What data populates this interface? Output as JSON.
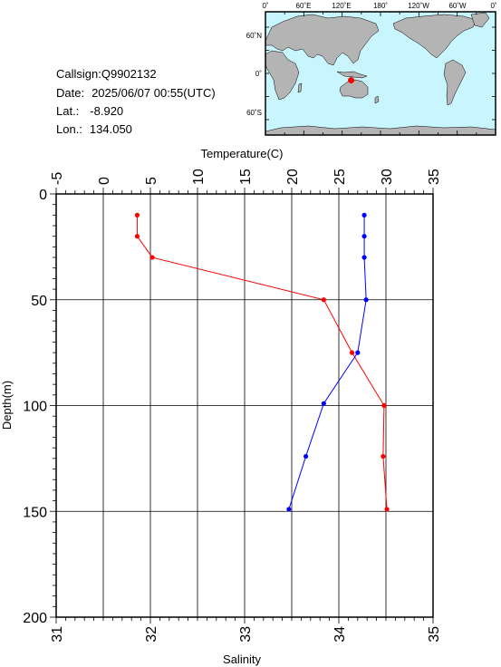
{
  "header": {
    "callsign_line": "Callsign:Q9902132",
    "date_label": "Date:",
    "date_value": "2025/06/07 00:55(UTC)",
    "lat_label": "Lat.:",
    "lat_value": "-8.920",
    "lon_label": "Lon.:",
    "lon_value": "134.050"
  },
  "map": {
    "top_labels": [
      "0˚",
      "60˚E",
      "120˚E",
      "180˚",
      "120˚W",
      "60˚W",
      "0˚"
    ],
    "left_labels": [
      "60˚N",
      "0˚",
      "60˚S"
    ],
    "ocean_color": "#c9f5ff",
    "land_color": "#b4b4b4",
    "marker_color": "#ff0000",
    "marker_lat": -8.92,
    "marker_lon": 134.05
  },
  "chart_data": {
    "type": "line",
    "title": "",
    "ylabel": "Depth(m)",
    "ylim": [
      0,
      200
    ],
    "y_inverted": true,
    "y_ticks": [
      0,
      50,
      100,
      150,
      200
    ],
    "top_axis": {
      "label": "Temperature(C)",
      "lim": [
        -5,
        35
      ],
      "ticks": [
        -5,
        0,
        5,
        10,
        15,
        20,
        25,
        30,
        35
      ]
    },
    "bottom_axis": {
      "label": "Salinity",
      "lim": [
        31,
        35
      ],
      "ticks": [
        31,
        32,
        33,
        34,
        35
      ]
    },
    "grid": true,
    "series": [
      {
        "axis": "top",
        "color": "#ff0000",
        "points": [
          {
            "depth": 10,
            "value": 3.6
          },
          {
            "depth": 20,
            "value": 3.6
          },
          {
            "depth": 30,
            "value": 5.2
          },
          {
            "depth": 50,
            "value": 23.4
          },
          {
            "depth": 75,
            "value": 26.4
          },
          {
            "depth": 100,
            "value": 29.8
          },
          {
            "depth": 124,
            "value": 29.7
          },
          {
            "depth": 149,
            "value": 30.1
          }
        ]
      },
      {
        "axis": "bottom",
        "color": "#0000ff",
        "points": [
          {
            "depth": 10,
            "value": 34.27
          },
          {
            "depth": 20,
            "value": 34.27
          },
          {
            "depth": 30,
            "value": 34.27
          },
          {
            "depth": 50,
            "value": 34.29
          },
          {
            "depth": 75,
            "value": 34.2
          },
          {
            "depth": 99,
            "value": 33.84
          },
          {
            "depth": 124,
            "value": 33.65
          },
          {
            "depth": 149,
            "value": 33.47
          }
        ]
      }
    ]
  }
}
